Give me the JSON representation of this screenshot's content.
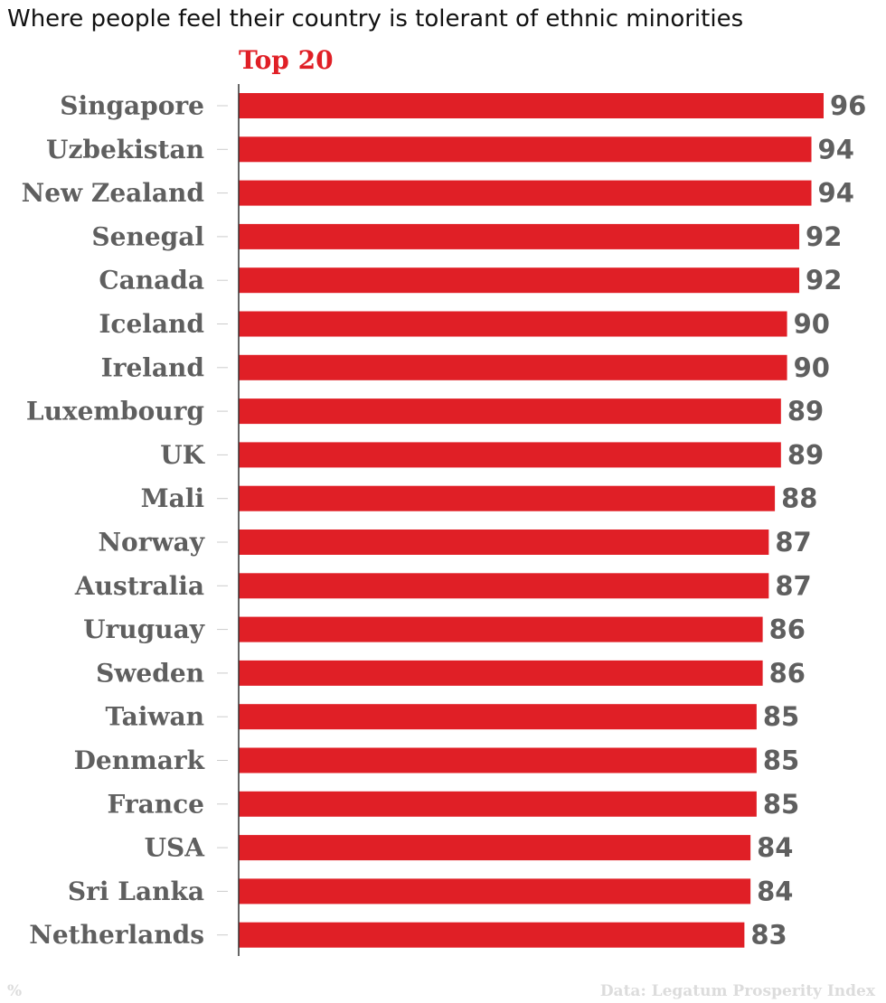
{
  "chart_data": {
    "type": "bar",
    "orientation": "horizontal",
    "title": "Where people feel their country is tolerant of ethnic minorities",
    "subtitle": "Top 20",
    "unit": "%",
    "source": "Data: Legatum Prosperity Index",
    "categories": [
      "Singapore",
      "Uzbekistan",
      "New Zealand",
      "Senegal",
      "Canada",
      "Iceland",
      "Ireland",
      "Luxembourg",
      "UK",
      "Mali",
      "Norway",
      "Australia",
      "Uruguay",
      "Sweden",
      "Taiwan",
      "Denmark",
      "France",
      "USA",
      "Sri Lanka",
      "Netherlands"
    ],
    "values": [
      96,
      94,
      94,
      92,
      92,
      90,
      90,
      89,
      89,
      88,
      87,
      87,
      86,
      86,
      85,
      85,
      85,
      84,
      84,
      83
    ],
    "xlim": [
      0,
      96
    ],
    "grid": false,
    "legend": "none",
    "bar_color": "#e01f26",
    "subtitle_color": "#e01f26",
    "label_color": "#5f5f5f"
  }
}
